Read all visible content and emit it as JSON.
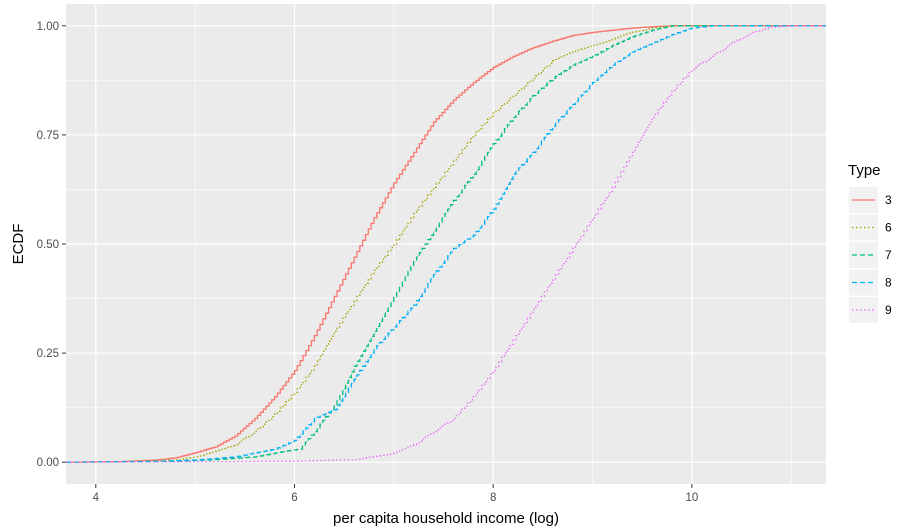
{
  "chart_data": {
    "type": "line",
    "title": "",
    "xlabel": "per capita household income (log)",
    "ylabel": "ECDF",
    "xlim": [
      3.7,
      11.35
    ],
    "ylim": [
      -0.05,
      1.05
    ],
    "x_ticks": [
      4,
      6,
      8,
      10
    ],
    "x_tick_labels": [
      "4",
      "6",
      "8",
      "10"
    ],
    "y_ticks": [
      0,
      0.25,
      0.5,
      0.75,
      1
    ],
    "y_tick_labels": [
      "0.00",
      "0.25",
      "0.50",
      "0.75",
      "1.00"
    ],
    "grid": true,
    "legend": {
      "title": "Type",
      "position": "right"
    },
    "series": [
      {
        "name": "3",
        "color": "#f8766d",
        "linestyle": "solid",
        "points": [
          [
            3.7,
            0
          ],
          [
            4.2,
            0.001
          ],
          [
            4.6,
            0.005
          ],
          [
            4.8,
            0.01
          ],
          [
            5.0,
            0.022
          ],
          [
            5.2,
            0.035
          ],
          [
            5.4,
            0.06
          ],
          [
            5.6,
            0.1
          ],
          [
            5.8,
            0.15
          ],
          [
            6.0,
            0.21
          ],
          [
            6.2,
            0.29
          ],
          [
            6.4,
            0.38
          ],
          [
            6.6,
            0.47
          ],
          [
            6.8,
            0.56
          ],
          [
            7.0,
            0.64
          ],
          [
            7.2,
            0.71
          ],
          [
            7.4,
            0.78
          ],
          [
            7.6,
            0.83
          ],
          [
            7.8,
            0.87
          ],
          [
            8.0,
            0.905
          ],
          [
            8.2,
            0.93
          ],
          [
            8.4,
            0.95
          ],
          [
            8.6,
            0.965
          ],
          [
            8.8,
            0.978
          ],
          [
            9.0,
            0.985
          ],
          [
            9.2,
            0.99
          ],
          [
            9.4,
            0.995
          ],
          [
            9.6,
            0.998
          ],
          [
            9.8,
            1
          ],
          [
            11.35,
            1
          ]
        ]
      },
      {
        "name": "6",
        "color": "#a3a500",
        "linestyle": "dotted",
        "points": [
          [
            3.7,
            0
          ],
          [
            4.4,
            0.002
          ],
          [
            4.8,
            0.005
          ],
          [
            5.0,
            0.012
          ],
          [
            5.4,
            0.04
          ],
          [
            5.6,
            0.07
          ],
          [
            5.8,
            0.11
          ],
          [
            6.0,
            0.16
          ],
          [
            6.2,
            0.22
          ],
          [
            6.4,
            0.3
          ],
          [
            6.6,
            0.37
          ],
          [
            6.8,
            0.44
          ],
          [
            7.0,
            0.5
          ],
          [
            7.2,
            0.57
          ],
          [
            7.4,
            0.63
          ],
          [
            7.6,
            0.69
          ],
          [
            7.8,
            0.75
          ],
          [
            8.0,
            0.8
          ],
          [
            8.2,
            0.84
          ],
          [
            8.4,
            0.88
          ],
          [
            8.6,
            0.92
          ],
          [
            8.8,
            0.94
          ],
          [
            9.0,
            0.955
          ],
          [
            9.2,
            0.97
          ],
          [
            9.4,
            0.985
          ],
          [
            9.6,
            0.995
          ],
          [
            9.8,
            1
          ],
          [
            11.35,
            1
          ]
        ]
      },
      {
        "name": "7",
        "color": "#00bf7d",
        "linestyle": "dashed",
        "points": [
          [
            3.7,
            0
          ],
          [
            4.8,
            0.002
          ],
          [
            5.2,
            0.006
          ],
          [
            5.6,
            0.012
          ],
          [
            5.9,
            0.025
          ],
          [
            6.05,
            0.03
          ],
          [
            6.2,
            0.07
          ],
          [
            6.4,
            0.13
          ],
          [
            6.6,
            0.22
          ],
          [
            6.8,
            0.3
          ],
          [
            7.0,
            0.38
          ],
          [
            7.2,
            0.46
          ],
          [
            7.4,
            0.53
          ],
          [
            7.6,
            0.6
          ],
          [
            7.8,
            0.66
          ],
          [
            8.0,
            0.73
          ],
          [
            8.2,
            0.79
          ],
          [
            8.4,
            0.84
          ],
          [
            8.6,
            0.88
          ],
          [
            8.8,
            0.91
          ],
          [
            9.0,
            0.93
          ],
          [
            9.2,
            0.955
          ],
          [
            9.4,
            0.975
          ],
          [
            9.6,
            0.99
          ],
          [
            9.8,
            1
          ],
          [
            11.35,
            1
          ]
        ]
      },
      {
        "name": "8",
        "color": "#00b0f6",
        "linestyle": "dashed",
        "points": [
          [
            3.7,
            0
          ],
          [
            4.6,
            0.002
          ],
          [
            5.0,
            0.005
          ],
          [
            5.4,
            0.012
          ],
          [
            5.8,
            0.03
          ],
          [
            6.0,
            0.05
          ],
          [
            6.2,
            0.1
          ],
          [
            6.4,
            0.12
          ],
          [
            6.6,
            0.19
          ],
          [
            6.8,
            0.26
          ],
          [
            7.0,
            0.31
          ],
          [
            7.2,
            0.36
          ],
          [
            7.4,
            0.43
          ],
          [
            7.6,
            0.49
          ],
          [
            7.8,
            0.52
          ],
          [
            8.0,
            0.58
          ],
          [
            8.2,
            0.66
          ],
          [
            8.4,
            0.71
          ],
          [
            8.6,
            0.77
          ],
          [
            8.8,
            0.82
          ],
          [
            9.0,
            0.87
          ],
          [
            9.2,
            0.91
          ],
          [
            9.4,
            0.94
          ],
          [
            9.6,
            0.96
          ],
          [
            9.8,
            0.98
          ],
          [
            10.0,
            0.995
          ],
          [
            10.2,
            1
          ],
          [
            11.35,
            1
          ]
        ]
      },
      {
        "name": "9",
        "color": "#e76bf3",
        "linestyle": "dotted",
        "points": [
          [
            3.7,
            0
          ],
          [
            6.0,
            0.002
          ],
          [
            6.6,
            0.006
          ],
          [
            7.0,
            0.02
          ],
          [
            7.2,
            0.04
          ],
          [
            7.4,
            0.07
          ],
          [
            7.6,
            0.1
          ],
          [
            7.8,
            0.15
          ],
          [
            8.0,
            0.21
          ],
          [
            8.2,
            0.28
          ],
          [
            8.4,
            0.35
          ],
          [
            8.6,
            0.42
          ],
          [
            8.8,
            0.49
          ],
          [
            9.0,
            0.56
          ],
          [
            9.2,
            0.63
          ],
          [
            9.4,
            0.71
          ],
          [
            9.6,
            0.79
          ],
          [
            9.8,
            0.85
          ],
          [
            10.0,
            0.9
          ],
          [
            10.2,
            0.93
          ],
          [
            10.4,
            0.96
          ],
          [
            10.6,
            0.985
          ],
          [
            10.8,
            0.997
          ],
          [
            11.0,
            1
          ],
          [
            11.35,
            1
          ]
        ]
      }
    ]
  }
}
